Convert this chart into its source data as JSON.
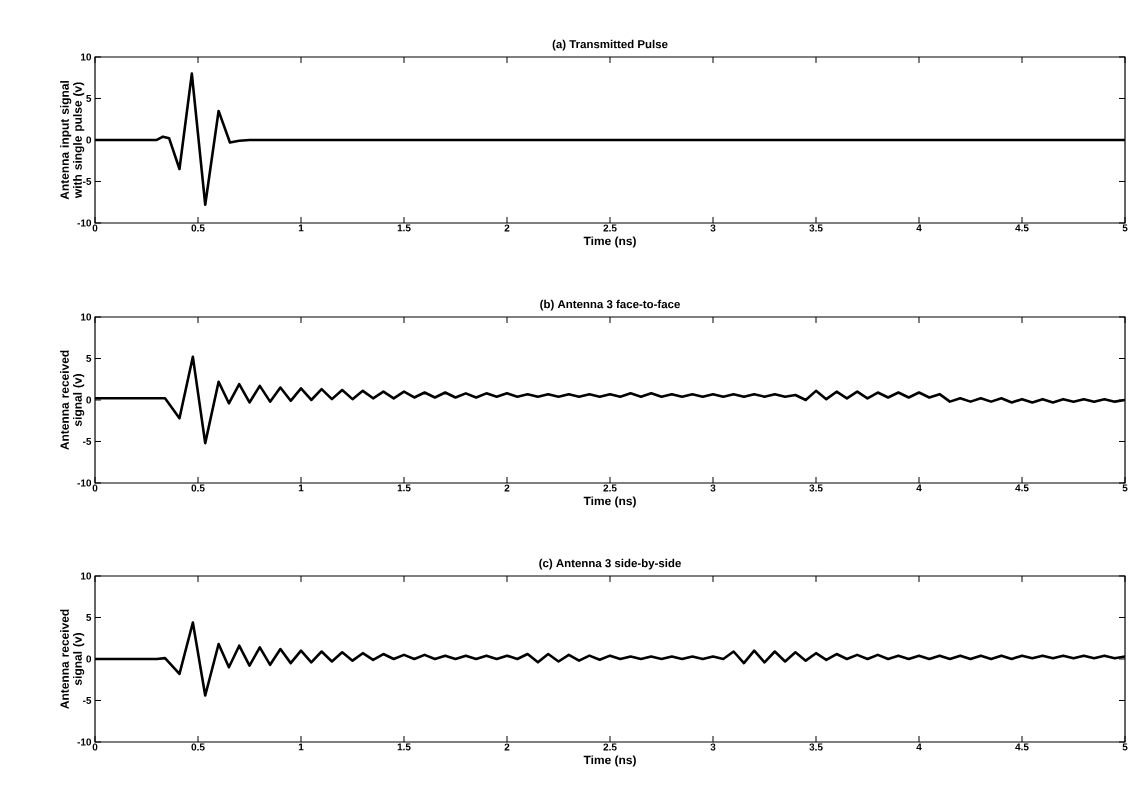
{
  "chart_data": [
    {
      "type": "line",
      "title": "(a) Transmitted Pulse",
      "xlabel": "Time (ns)",
      "ylabel": "Antenna input signal with single pulse (v)",
      "xlim": [
        0,
        5
      ],
      "ylim": [
        -10,
        10
      ],
      "xticks": [
        0,
        0.5,
        1,
        1.5,
        2,
        2.5,
        3,
        3.5,
        4,
        4.5,
        5
      ],
      "yticks": [
        -10,
        -5,
        0,
        5,
        10
      ],
      "line_style": "solid",
      "series": [
        {
          "color": "#000000",
          "x": [
            0,
            0.3,
            0.33,
            0.36,
            0.41,
            0.47,
            0.535,
            0.6,
            0.655,
            0.7,
            0.75,
            5
          ],
          "values": [
            0,
            0,
            0.4,
            0.2,
            -3.5,
            8,
            -7.8,
            3.5,
            -0.3,
            -0.1,
            0,
            0
          ]
        }
      ]
    },
    {
      "type": "line",
      "title": "(b) Antenna 3 face-to-face",
      "xlabel": "Time (ns)",
      "ylabel": "Antenna received signal (v)",
      "xlim": [
        0,
        5
      ],
      "ylim": [
        -10,
        10
      ],
      "xticks": [
        0,
        0.5,
        1,
        1.5,
        2,
        2.5,
        3,
        3.5,
        4,
        4.5,
        5
      ],
      "yticks": [
        -10,
        -5,
        0,
        5,
        10
      ],
      "line_style": "solid",
      "series": [
        {
          "color": "#000000",
          "x": [
            0,
            0.3,
            0.34,
            0.41,
            0.475,
            0.535,
            0.6,
            0.65,
            0.7,
            0.75,
            0.8,
            0.85,
            0.9,
            0.95,
            1.0,
            1.05,
            1.1,
            1.15,
            1.2,
            1.25,
            1.3,
            1.35,
            1.4,
            1.45,
            1.5,
            1.55,
            1.6,
            1.65,
            1.7,
            1.75,
            1.8,
            1.85,
            1.9,
            1.95,
            2.0,
            2.05,
            2.1,
            2.15,
            2.2,
            2.25,
            2.3,
            2.35,
            2.4,
            2.45,
            2.5,
            2.55,
            2.6,
            2.65,
            2.7,
            2.75,
            2.8,
            2.85,
            2.9,
            2.95,
            3.0,
            3.05,
            3.1,
            3.15,
            3.2,
            3.25,
            3.3,
            3.35,
            3.4,
            3.45,
            3.5,
            3.55,
            3.6,
            3.65,
            3.7,
            3.75,
            3.8,
            3.85,
            3.9,
            3.95,
            4.0,
            4.05,
            4.1,
            4.15,
            4.2,
            4.25,
            4.3,
            4.35,
            4.4,
            4.45,
            4.5,
            4.55,
            4.6,
            4.65,
            4.7,
            4.75,
            4.8,
            4.85,
            4.9,
            4.95,
            5.0
          ],
          "values": [
            0.2,
            0.2,
            0.2,
            -2.2,
            5.2,
            -5.2,
            2.2,
            -0.4,
            1.9,
            -0.3,
            1.7,
            -0.2,
            1.5,
            -0.1,
            1.4,
            0.0,
            1.3,
            0.1,
            1.2,
            0.1,
            1.1,
            0.2,
            1.0,
            0.2,
            1.0,
            0.3,
            0.9,
            0.3,
            0.9,
            0.3,
            0.8,
            0.3,
            0.8,
            0.4,
            0.8,
            0.4,
            0.7,
            0.4,
            0.7,
            0.4,
            0.7,
            0.4,
            0.7,
            0.4,
            0.7,
            0.4,
            0.8,
            0.4,
            0.8,
            0.4,
            0.7,
            0.4,
            0.7,
            0.4,
            0.7,
            0.4,
            0.7,
            0.4,
            0.7,
            0.4,
            0.7,
            0.4,
            0.6,
            0.0,
            1.1,
            0.1,
            1.0,
            0.2,
            1.0,
            0.2,
            0.9,
            0.3,
            0.9,
            0.3,
            0.9,
            0.3,
            0.7,
            -0.2,
            0.2,
            -0.2,
            0.2,
            -0.2,
            0.2,
            -0.3,
            0.1,
            -0.3,
            0.1,
            -0.3,
            0.1,
            -0.2,
            0.1,
            -0.2,
            0.1,
            -0.2,
            0.0
          ]
        }
      ]
    },
    {
      "type": "line",
      "title": "(c) Antenna 3 side-by-side",
      "xlabel": "Time (ns)",
      "ylabel": "Antenna received signal (v)",
      "xlim": [
        0,
        5
      ],
      "ylim": [
        -10,
        10
      ],
      "xticks": [
        0,
        0.5,
        1,
        1.5,
        2,
        2.5,
        3,
        3.5,
        4,
        4.5,
        5
      ],
      "yticks": [
        -10,
        -5,
        0,
        5,
        10
      ],
      "line_style": "solid",
      "series": [
        {
          "color": "#000000",
          "x": [
            0,
            0.3,
            0.34,
            0.41,
            0.475,
            0.535,
            0.6,
            0.65,
            0.7,
            0.75,
            0.8,
            0.85,
            0.9,
            0.95,
            1.0,
            1.05,
            1.1,
            1.15,
            1.2,
            1.25,
            1.3,
            1.35,
            1.4,
            1.45,
            1.5,
            1.55,
            1.6,
            1.65,
            1.7,
            1.75,
            1.8,
            1.85,
            1.9,
            1.95,
            2.0,
            2.05,
            2.1,
            2.15,
            2.2,
            2.25,
            2.3,
            2.35,
            2.4,
            2.45,
            2.5,
            2.55,
            2.6,
            2.65,
            2.7,
            2.75,
            2.8,
            2.85,
            2.9,
            2.95,
            3.0,
            3.05,
            3.1,
            3.15,
            3.2,
            3.25,
            3.3,
            3.35,
            3.4,
            3.45,
            3.5,
            3.55,
            3.6,
            3.65,
            3.7,
            3.75,
            3.8,
            3.85,
            3.9,
            3.95,
            4.0,
            4.05,
            4.1,
            4.15,
            4.2,
            4.25,
            4.3,
            4.35,
            4.4,
            4.45,
            4.5,
            4.55,
            4.6,
            4.65,
            4.7,
            4.75,
            4.8,
            4.85,
            4.9,
            4.95,
            5.0
          ],
          "values": [
            0,
            0,
            0.1,
            -1.8,
            4.4,
            -4.4,
            1.8,
            -1.0,
            1.6,
            -0.8,
            1.4,
            -0.7,
            1.2,
            -0.5,
            1.0,
            -0.4,
            0.9,
            -0.3,
            0.8,
            -0.2,
            0.7,
            -0.1,
            0.6,
            0.0,
            0.5,
            0.0,
            0.5,
            0.0,
            0.4,
            0.0,
            0.4,
            0.0,
            0.4,
            0.0,
            0.4,
            0.0,
            0.6,
            -0.4,
            0.6,
            -0.3,
            0.5,
            -0.2,
            0.4,
            -0.1,
            0.4,
            0.0,
            0.3,
            0.0,
            0.3,
            0.0,
            0.3,
            0.0,
            0.3,
            0.0,
            0.3,
            0.0,
            0.9,
            -0.5,
            1.0,
            -0.4,
            0.9,
            -0.3,
            0.8,
            -0.2,
            0.7,
            -0.1,
            0.6,
            0.0,
            0.5,
            0.0,
            0.5,
            0.0,
            0.4,
            0.0,
            0.4,
            0.0,
            0.4,
            0.0,
            0.4,
            0.0,
            0.4,
            0.0,
            0.4,
            0.0,
            0.4,
            0.1,
            0.4,
            0.1,
            0.4,
            0.1,
            0.4,
            0.1,
            0.4,
            0.1,
            0.3
          ]
        }
      ]
    }
  ]
}
